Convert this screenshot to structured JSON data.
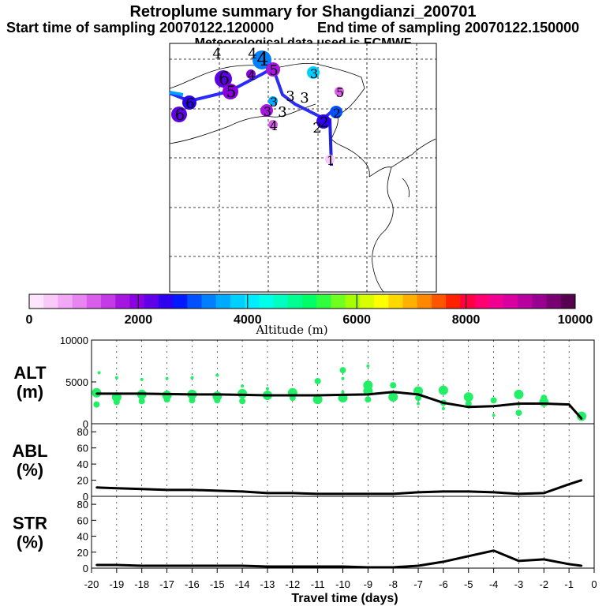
{
  "header": {
    "title": "Retroplume summary for Shangdianzi_200701",
    "start_label": "Start time of sampling 20070122.120000",
    "end_label": "End time of sampling 20070122.150000",
    "met_label": "Meteorological data used is ECMWF"
  },
  "colorbar": {
    "label": "Altitude (m)",
    "ticks": [
      "0",
      "2000",
      "4000",
      "6000",
      "8000",
      "10000"
    ],
    "colors": [
      "#fde6fd",
      "#f9c9f9",
      "#f2a8f5",
      "#e985f0",
      "#d95eea",
      "#c43ae6",
      "#a516e0",
      "#8a00e0",
      "#5f00e8",
      "#2d00f0",
      "#0019ff",
      "#0050ff",
      "#0080ff",
      "#00aaff",
      "#00d0ff",
      "#00ecff",
      "#00ffea",
      "#00ffc0",
      "#00ff90",
      "#00ff66",
      "#30ff40",
      "#70ff20",
      "#a6ff00",
      "#d8ff00",
      "#ffff00",
      "#ffd800",
      "#ffb000",
      "#ff8800",
      "#ff5500",
      "#ff2200",
      "#ff0040",
      "#ff0070",
      "#f00090",
      "#d800a0",
      "#b800a0",
      "#980090",
      "#780070",
      "#580050"
    ]
  },
  "map_labels": {
    "markers": [
      {
        "label": "4",
        "alt": 3200
      },
      {
        "label": "5",
        "alt": 1800
      },
      {
        "label": "4",
        "alt": 2100
      },
      {
        "label": "6",
        "alt": 2300
      },
      {
        "label": "5",
        "alt": 2000
      },
      {
        "label": "6",
        "alt": 2600
      },
      {
        "label": "6",
        "alt": 2200
      },
      {
        "label": "3",
        "alt": 1600
      },
      {
        "label": "4",
        "alt": 1200
      },
      {
        "label": "3",
        "alt": 3600
      },
      {
        "label": "3",
        "alt": 3800
      },
      {
        "label": "5",
        "alt": 1300
      },
      {
        "label": "2",
        "alt": 2500
      },
      {
        "label": "2",
        "alt": 3100
      },
      {
        "label": "1",
        "alt": 500
      }
    ],
    "loose_digits": [
      "4",
      "3",
      "3",
      "2",
      "3",
      "4"
    ]
  },
  "chart_data": [
    {
      "type": "line",
      "name": "ALT",
      "ylabel": "ALT\n(m)",
      "ylabel_line1": "ALT",
      "ylabel_line2": "(m)",
      "ylim": [
        0,
        10000
      ],
      "yticks": [
        "10000",
        "5000",
        "0"
      ],
      "x": [
        -19.8,
        -19,
        -18,
        -17,
        -16,
        -15,
        -14,
        -13,
        -12,
        -11,
        -10,
        -9,
        -8,
        -7,
        -6,
        -5,
        -4,
        -3,
        -2,
        -1,
        -0.5
      ],
      "values": [
        3600,
        3600,
        3600,
        3550,
        3500,
        3500,
        3450,
        3400,
        3400,
        3400,
        3450,
        3500,
        3800,
        3500,
        2500,
        2000,
        2100,
        2400,
        2400,
        2300,
        600
      ],
      "scatter_points": [
        {
          "x": -19.8,
          "y": 3700
        },
        {
          "x": -19.8,
          "y": 2300
        },
        {
          "x": -19.7,
          "y": 6100
        },
        {
          "x": -19,
          "y": 3200
        },
        {
          "x": -19,
          "y": 2600
        },
        {
          "x": -19,
          "y": 5500
        },
        {
          "x": -18,
          "y": 3500
        },
        {
          "x": -18,
          "y": 2700
        },
        {
          "x": -18,
          "y": 5300
        },
        {
          "x": -17,
          "y": 3400
        },
        {
          "x": -17,
          "y": 2900
        },
        {
          "x": -17,
          "y": 5400
        },
        {
          "x": -16,
          "y": 3500
        },
        {
          "x": -16,
          "y": 2800
        },
        {
          "x": -16,
          "y": 5500
        },
        {
          "x": -15,
          "y": 3300
        },
        {
          "x": -15,
          "y": 2800
        },
        {
          "x": -15,
          "y": 5800
        },
        {
          "x": -14,
          "y": 3600
        },
        {
          "x": -14,
          "y": 2700
        },
        {
          "x": -14,
          "y": 4500
        },
        {
          "x": -13,
          "y": 3400
        },
        {
          "x": -13,
          "y": 3200
        },
        {
          "x": -13,
          "y": 4200
        },
        {
          "x": -12,
          "y": 3700
        },
        {
          "x": -12,
          "y": 3100
        },
        {
          "x": -11,
          "y": 3400
        },
        {
          "x": -11,
          "y": 2900
        },
        {
          "x": -11,
          "y": 5100
        },
        {
          "x": -10,
          "y": 3800
        },
        {
          "x": -10,
          "y": 3100
        },
        {
          "x": -10,
          "y": 6400
        },
        {
          "x": -10,
          "y": 5400
        },
        {
          "x": -9,
          "y": 3900
        },
        {
          "x": -9,
          "y": 2900
        },
        {
          "x": -9,
          "y": 6900
        },
        {
          "x": -9,
          "y": 4600
        },
        {
          "x": -8,
          "y": 4600
        },
        {
          "x": -8,
          "y": 3700
        },
        {
          "x": -8,
          "y": 3200
        },
        {
          "x": -7,
          "y": 3100
        },
        {
          "x": -7,
          "y": 2400
        },
        {
          "x": -7,
          "y": 3900
        },
        {
          "x": -6,
          "y": 2500
        },
        {
          "x": -6,
          "y": 1800
        },
        {
          "x": -6,
          "y": 4000
        },
        {
          "x": -5,
          "y": 2400
        },
        {
          "x": -5,
          "y": 2000
        },
        {
          "x": -5,
          "y": 3200
        },
        {
          "x": -4,
          "y": 2800
        },
        {
          "x": -4,
          "y": 1000
        },
        {
          "x": -3,
          "y": 3500
        },
        {
          "x": -3,
          "y": 1300
        },
        {
          "x": -3,
          "y": 2300
        },
        {
          "x": -2,
          "y": 2600
        },
        {
          "x": -2,
          "y": 3100
        },
        {
          "x": -0.5,
          "y": 600
        },
        {
          "x": -0.5,
          "y": 900
        }
      ]
    },
    {
      "type": "line",
      "name": "ABL",
      "ylabel_line1": "ABL",
      "ylabel_line2": "(%)",
      "ylim": [
        0,
        90
      ],
      "yticks": [
        "80",
        "60",
        "40",
        "20",
        "0"
      ],
      "x": [
        -19.8,
        -19,
        -18,
        -17,
        -16,
        -15,
        -14,
        -13,
        -12,
        -11,
        -10,
        -9,
        -8,
        -7,
        -6,
        -5,
        -4,
        -3,
        -2,
        -1,
        -0.5
      ],
      "values": [
        11,
        10,
        9,
        8,
        8,
        7,
        6,
        4,
        4,
        3,
        3,
        3,
        3,
        5,
        6,
        6,
        5,
        3,
        4,
        15,
        20
      ]
    },
    {
      "type": "line",
      "name": "STR",
      "ylabel_line1": "STR",
      "ylabel_line2": "(%)",
      "ylim": [
        0,
        90
      ],
      "yticks": [
        "80",
        "60",
        "40",
        "20",
        "0"
      ],
      "x": [
        -19.8,
        -19,
        -18,
        -17,
        -16,
        -15,
        -14,
        -13,
        -12,
        -11,
        -10,
        -9,
        -8,
        -7,
        -6,
        -5,
        -4,
        -3,
        -2,
        -1,
        -0.5
      ],
      "values": [
        4,
        4,
        3,
        3,
        3,
        3,
        3,
        2,
        2,
        2,
        2,
        1,
        1,
        3,
        8,
        15,
        22,
        9,
        11,
        5,
        3
      ]
    }
  ],
  "xaxis": {
    "ticks": [
      "-20",
      "-19",
      "-18",
      "-17",
      "-16",
      "-15",
      "-14",
      "-13",
      "-12",
      "-11",
      "-10",
      "-9",
      "-8",
      "-7",
      "-6",
      "-5",
      "-4",
      "-3",
      "-2",
      "-1",
      "0"
    ],
    "label": "Travel time (days)"
  }
}
